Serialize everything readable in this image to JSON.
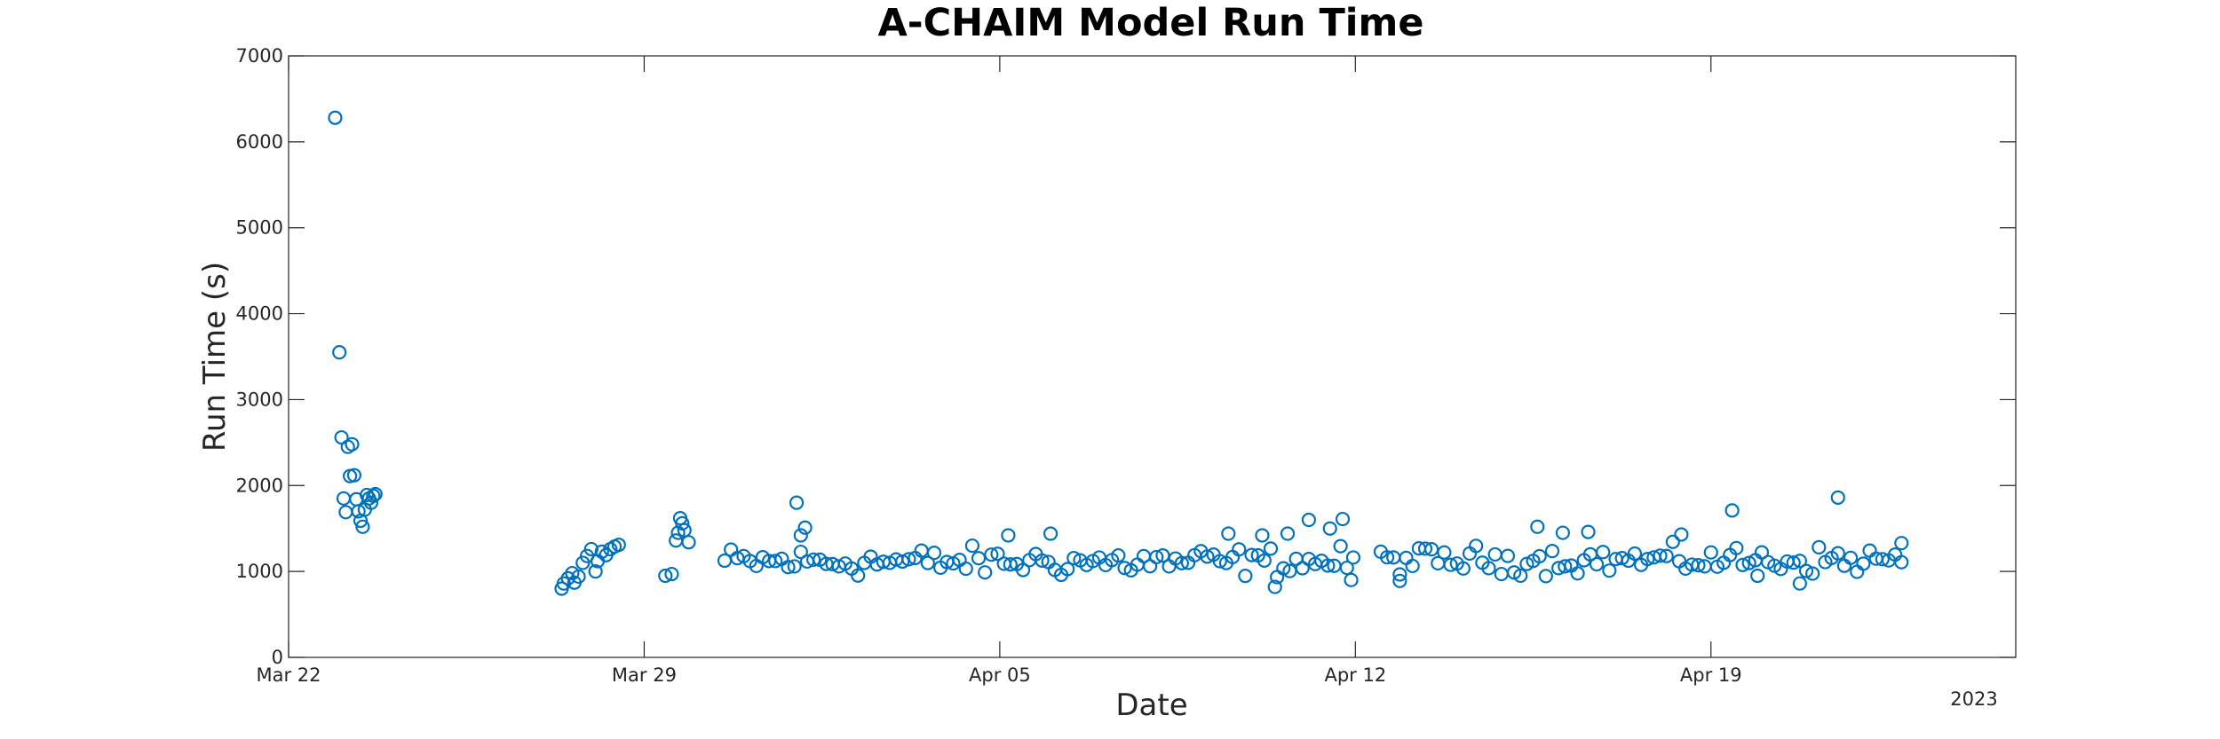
{
  "chart_data": {
    "type": "scatter",
    "title": "A-CHAIM Model Run Time",
    "xlabel": "Date",
    "ylabel": "Run Time (s)",
    "year_label": "2023",
    "xlim": [
      "2023-03-22",
      "2023-04-25"
    ],
    "ylim": [
      0,
      7000
    ],
    "x_ticks": [
      {
        "date": "2023-03-22",
        "label": "Mar 22"
      },
      {
        "date": "2023-03-29",
        "label": "Mar 29"
      },
      {
        "date": "2023-04-05",
        "label": "Apr 05"
      },
      {
        "date": "2023-04-12",
        "label": "Apr 12"
      },
      {
        "date": "2023-04-19",
        "label": "Apr 19"
      }
    ],
    "y_ticks": [
      0,
      1000,
      2000,
      3000,
      4000,
      5000,
      6000,
      7000
    ],
    "grid": false,
    "marker": "open-circle",
    "color": "#0072BD",
    "series": [
      {
        "points": [
          [
            "2023-03-22T22:00",
            6280
          ],
          [
            "2023-03-23T00:00",
            3550
          ],
          [
            "2023-03-23T01:00",
            2560
          ],
          [
            "2023-03-23T02:00",
            1850
          ],
          [
            "2023-03-23T03:00",
            1690
          ],
          [
            "2023-03-23T04:00",
            2450
          ],
          [
            "2023-03-23T06:00",
            2480
          ],
          [
            "2023-03-23T05:00",
            2110
          ],
          [
            "2023-03-23T07:00",
            2120
          ],
          [
            "2023-03-23T08:00",
            1840
          ],
          [
            "2023-03-23T09:00",
            1700
          ],
          [
            "2023-03-23T10:00",
            1590
          ],
          [
            "2023-03-23T11:00",
            1520
          ],
          [
            "2023-03-23T12:00",
            1720
          ],
          [
            "2023-03-23T13:00",
            1890
          ],
          [
            "2023-03-23T14:00",
            1850
          ],
          [
            "2023-03-23T15:00",
            1800
          ],
          [
            "2023-03-23T16:00",
            1880
          ],
          [
            "2023-03-23T17:00",
            1900
          ],
          [
            "2023-03-27T09:00",
            800
          ],
          [
            "2023-03-27T10:00",
            860
          ],
          [
            "2023-03-27T12:00",
            920
          ],
          [
            "2023-03-27T14:00",
            980
          ],
          [
            "2023-03-27T15:00",
            870
          ],
          [
            "2023-03-27T17:00",
            940
          ],
          [
            "2023-03-27T19:00",
            1100
          ],
          [
            "2023-03-27T21:00",
            1180
          ],
          [
            "2023-03-27T23:00",
            1260
          ],
          [
            "2023-03-28T01:00",
            1000
          ],
          [
            "2023-03-28T02:00",
            1120
          ],
          [
            "2023-03-28T04:00",
            1230
          ],
          [
            "2023-03-28T06:00",
            1190
          ],
          [
            "2023-03-28T08:00",
            1260
          ],
          [
            "2023-03-28T10:00",
            1290
          ],
          [
            "2023-03-28T12:00",
            1310
          ],
          [
            "2023-03-29T10:00",
            950
          ],
          [
            "2023-03-29T13:00",
            970
          ],
          [
            "2023-03-29T15:00",
            1360
          ],
          [
            "2023-03-29T16:00",
            1450
          ],
          [
            "2023-03-29T17:00",
            1620
          ],
          [
            "2023-03-29T18:00",
            1560
          ],
          [
            "2023-03-29T19:00",
            1480
          ],
          [
            "2023-03-29T21:00",
            1340
          ],
          [
            "2023-04-01T00:00",
            1800
          ],
          [
            "2023-04-01T04:00",
            1510
          ],
          [
            "2023-04-01T02:00",
            1420
          ],
          [
            "2023-04-05T04:00",
            1420
          ],
          [
            "2023-04-06T00:00",
            1440
          ],
          [
            "2023-04-09T12:00",
            1440
          ],
          [
            "2023-04-10T04:00",
            1420
          ],
          [
            "2023-04-10T16:00",
            1440
          ],
          [
            "2023-04-10T10:00",
            820
          ],
          [
            "2023-04-11T02:00",
            1600
          ],
          [
            "2023-04-11T12:00",
            1500
          ],
          [
            "2023-04-11T18:00",
            1610
          ],
          [
            "2023-04-11T22:00",
            900
          ],
          [
            "2023-04-12T21:00",
            890
          ],
          [
            "2023-04-15T14:00",
            1520
          ],
          [
            "2023-04-16T02:00",
            1450
          ],
          [
            "2023-04-16T14:00",
            1460
          ],
          [
            "2023-04-18T10:00",
            1430
          ],
          [
            "2023-04-19T10:00",
            1710
          ],
          [
            "2023-04-19T22:00",
            950
          ],
          [
            "2023-04-20T18:00",
            860
          ],
          [
            "2023-04-21T12:00",
            1860
          ],
          [
            "2023-04-22T18:00",
            1330
          ]
        ],
        "dense_segments": [
          {
            "start": "2023-03-30T14:00",
            "end": "2023-04-11T23:00",
            "interval_hours": 3,
            "center": 1110,
            "spread": 170
          },
          {
            "start": "2023-04-12T12:00",
            "end": "2023-04-22T18:00",
            "interval_hours": 3,
            "center": 1130,
            "spread": 160
          }
        ]
      }
    ]
  }
}
